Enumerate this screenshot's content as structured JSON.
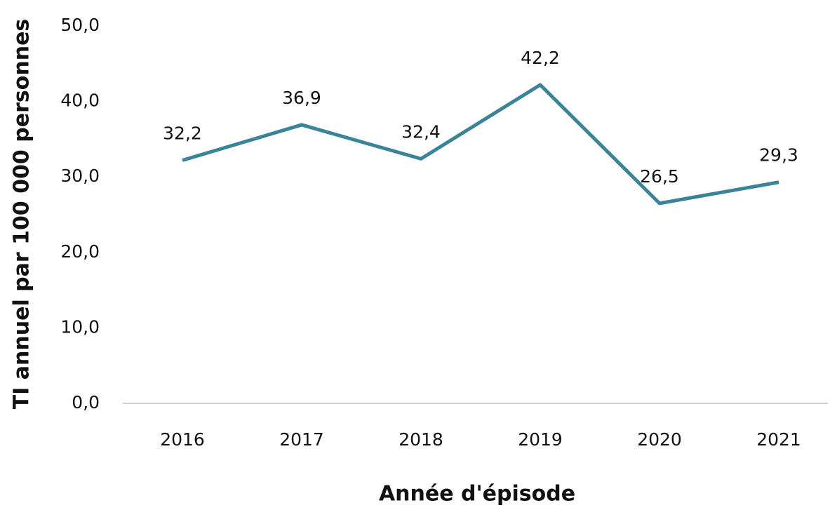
{
  "chart_data": {
    "type": "line",
    "y_label": "TI annuel par 100 000 personnes",
    "x_label": "Année d'épisode",
    "categories": [
      "2016",
      "2017",
      "2018",
      "2019",
      "2020",
      "2021"
    ],
    "series": [
      {
        "color": "#3a8499",
        "values": [
          32.2,
          36.9,
          32.4,
          42.2,
          26.5,
          29.3
        ],
        "value_labels": [
          "32,2",
          "36,9",
          "32,4",
          "42,2",
          "26,5",
          "29,3"
        ]
      }
    ],
    "ylim": [
      0,
      50
    ],
    "yticks": [
      {
        "value": 0,
        "label": "0,0"
      },
      {
        "value": 10,
        "label": "10,0"
      },
      {
        "value": 20,
        "label": "20,0"
      },
      {
        "value": 30,
        "label": "30,0"
      },
      {
        "value": 40,
        "label": "40,0"
      },
      {
        "value": 50,
        "label": "50,0"
      }
    ],
    "grid": false
  }
}
